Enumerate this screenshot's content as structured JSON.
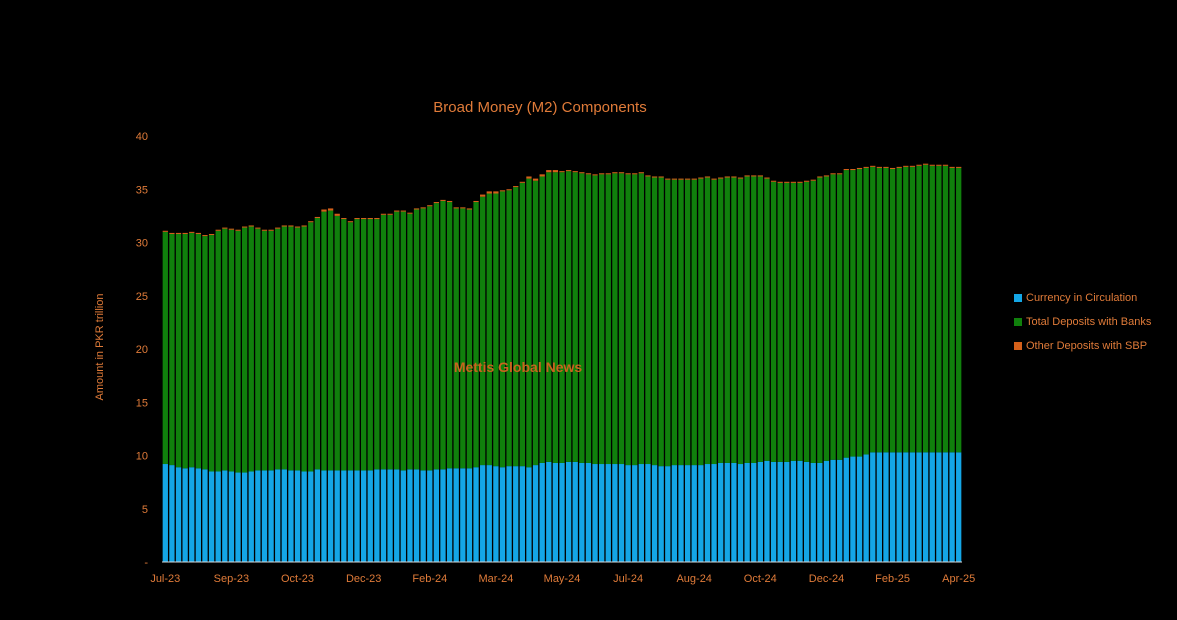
{
  "chart_data": {
    "type": "bar",
    "stacked": true,
    "title": "Broad Money (M2) Components",
    "ylabel": "Amount in PKR trillion",
    "xlabel": "",
    "ylim": [
      0,
      40
    ],
    "yticks": [
      {
        "value": 0,
        "label": "-"
      },
      {
        "value": 5,
        "label": "5"
      },
      {
        "value": 10,
        "label": "10"
      },
      {
        "value": 15,
        "label": "15"
      },
      {
        "value": 20,
        "label": "20"
      },
      {
        "value": 25,
        "label": "25"
      },
      {
        "value": 30,
        "label": "30"
      },
      {
        "value": 35,
        "label": "35"
      },
      {
        "value": 40,
        "label": "40"
      }
    ],
    "xtick_labels": [
      {
        "index": 0,
        "label": "Jul-23"
      },
      {
        "index": 10,
        "label": "Sep-23"
      },
      {
        "index": 20,
        "label": "Oct-23"
      },
      {
        "index": 30,
        "label": "Dec-23"
      },
      {
        "index": 40,
        "label": "Feb-24"
      },
      {
        "index": 50,
        "label": "Mar-24"
      },
      {
        "index": 60,
        "label": "May-24"
      },
      {
        "index": 70,
        "label": "Jul-24"
      },
      {
        "index": 80,
        "label": "Aug-24"
      },
      {
        "index": 90,
        "label": "Oct-24"
      },
      {
        "index": 100,
        "label": "Dec-24"
      },
      {
        "index": 110,
        "label": "Feb-25"
      },
      {
        "index": 120,
        "label": "Apr-25"
      }
    ],
    "legend_position": "right",
    "watermark": "Mettis Global News",
    "series": [
      {
        "name": "Currency in Circulation",
        "color": "#14a6e6",
        "values": [
          9.2,
          9.1,
          8.9,
          8.8,
          8.9,
          8.8,
          8.7,
          8.5,
          8.5,
          8.6,
          8.5,
          8.4,
          8.4,
          8.5,
          8.6,
          8.6,
          8.6,
          8.7,
          8.7,
          8.6,
          8.6,
          8.5,
          8.5,
          8.7,
          8.6,
          8.6,
          8.6,
          8.6,
          8.6,
          8.6,
          8.6,
          8.6,
          8.7,
          8.7,
          8.7,
          8.7,
          8.6,
          8.7,
          8.7,
          8.6,
          8.6,
          8.7,
          8.7,
          8.8,
          8.8,
          8.8,
          8.8,
          8.9,
          9.1,
          9.1,
          9.0,
          8.9,
          9.0,
          9.0,
          9.0,
          8.9,
          9.1,
          9.3,
          9.4,
          9.3,
          9.3,
          9.4,
          9.4,
          9.3,
          9.3,
          9.2,
          9.2,
          9.2,
          9.2,
          9.2,
          9.1,
          9.1,
          9.2,
          9.2,
          9.1,
          9.0,
          9.0,
          9.1,
          9.1,
          9.1,
          9.1,
          9.1,
          9.2,
          9.2,
          9.3,
          9.3,
          9.3,
          9.2,
          9.3,
          9.3,
          9.4,
          9.5,
          9.4,
          9.4,
          9.4,
          9.5,
          9.5,
          9.4,
          9.3,
          9.3,
          9.5,
          9.6,
          9.6,
          9.8,
          9.9,
          9.9,
          10.1,
          10.3,
          10.3,
          10.3,
          10.3,
          10.3,
          10.3,
          10.3,
          10.3,
          10.3,
          10.3,
          10.3,
          10.3,
          10.3,
          10.3
        ]
      },
      {
        "name": "Total Deposits with Banks",
        "color": "#10800c",
        "values": [
          21.8,
          21.7,
          21.9,
          22.0,
          22.0,
          22.0,
          21.9,
          22.2,
          22.6,
          22.7,
          22.7,
          22.7,
          23.0,
          23.0,
          22.7,
          22.5,
          22.5,
          22.6,
          22.8,
          22.9,
          22.8,
          23.0,
          23.4,
          23.6,
          24.3,
          24.4,
          23.9,
          23.6,
          23.3,
          23.6,
          23.6,
          23.6,
          23.5,
          23.9,
          23.9,
          24.2,
          24.3,
          24.0,
          24.4,
          24.6,
          24.8,
          25.0,
          25.2,
          25.0,
          24.4,
          24.4,
          24.3,
          24.9,
          25.2,
          25.5,
          25.6,
          25.9,
          25.9,
          26.2,
          26.6,
          27.1,
          26.7,
          26.9,
          27.2,
          27.3,
          27.3,
          27.3,
          27.2,
          27.2,
          27.1,
          27.1,
          27.2,
          27.2,
          27.3,
          27.3,
          27.3,
          27.3,
          27.3,
          27.0,
          27.0,
          27.1,
          26.9,
          26.8,
          26.8,
          26.8,
          26.8,
          26.9,
          26.9,
          26.7,
          26.7,
          26.8,
          26.8,
          26.8,
          26.9,
          26.9,
          26.8,
          26.5,
          26.3,
          26.2,
          26.2,
          26.1,
          26.1,
          26.3,
          26.5,
          26.8,
          26.7,
          26.8,
          26.8,
          27.0,
          26.9,
          27.0,
          26.9,
          26.8,
          26.7,
          26.7,
          26.6,
          26.7,
          26.8,
          26.8,
          26.9,
          27.0,
          26.9,
          26.9,
          26.9,
          26.7,
          26.7
        ]
      },
      {
        "name": "Other Deposits with SBP",
        "color": "#d4601a",
        "values": [
          0.1,
          0.1,
          0.1,
          0.1,
          0.1,
          0.1,
          0.1,
          0.1,
          0.1,
          0.1,
          0.1,
          0.1,
          0.1,
          0.1,
          0.1,
          0.1,
          0.1,
          0.1,
          0.1,
          0.1,
          0.1,
          0.1,
          0.1,
          0.1,
          0.2,
          0.2,
          0.2,
          0.1,
          0.1,
          0.1,
          0.1,
          0.1,
          0.1,
          0.1,
          0.1,
          0.1,
          0.1,
          0.1,
          0.1,
          0.1,
          0.1,
          0.1,
          0.1,
          0.1,
          0.1,
          0.1,
          0.1,
          0.1,
          0.2,
          0.2,
          0.2,
          0.1,
          0.1,
          0.1,
          0.1,
          0.2,
          0.2,
          0.2,
          0.2,
          0.2,
          0.1,
          0.1,
          0.1,
          0.1,
          0.1,
          0.1,
          0.1,
          0.1,
          0.1,
          0.1,
          0.1,
          0.1,
          0.1,
          0.1,
          0.1,
          0.1,
          0.1,
          0.1,
          0.1,
          0.1,
          0.1,
          0.1,
          0.1,
          0.1,
          0.1,
          0.1,
          0.1,
          0.1,
          0.1,
          0.1,
          0.1,
          0.1,
          0.1,
          0.1,
          0.1,
          0.1,
          0.1,
          0.1,
          0.1,
          0.1,
          0.1,
          0.1,
          0.1,
          0.1,
          0.1,
          0.1,
          0.1,
          0.1,
          0.1,
          0.1,
          0.1,
          0.1,
          0.1,
          0.1,
          0.1,
          0.1,
          0.1,
          0.1,
          0.1,
          0.1,
          0.1
        ]
      }
    ]
  }
}
